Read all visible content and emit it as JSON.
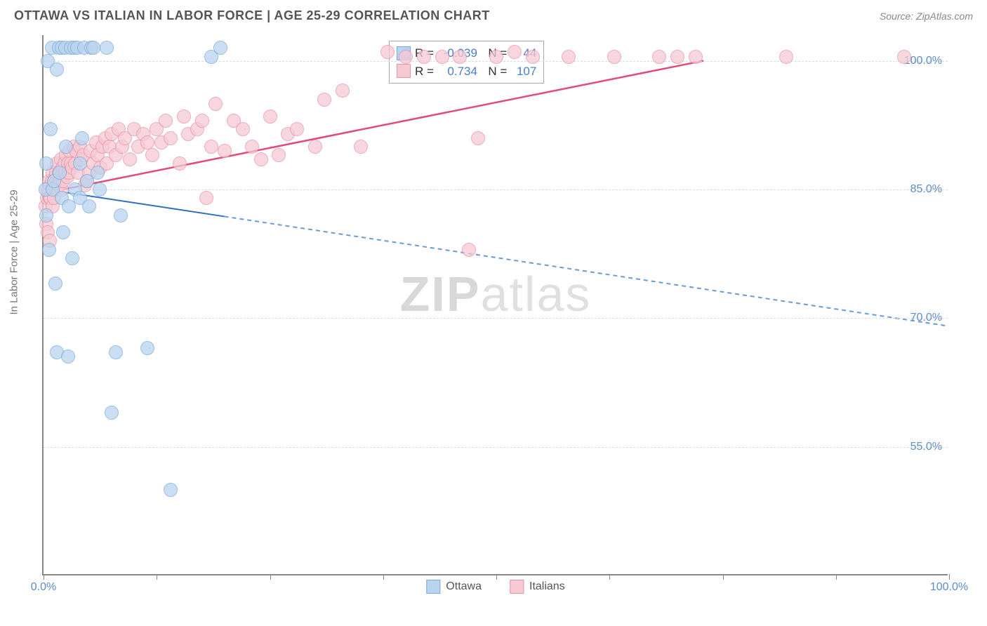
{
  "header": {
    "title": "OTTAWA VS ITALIAN IN LABOR FORCE | AGE 25-29 CORRELATION CHART",
    "source": "Source: ZipAtlas.com"
  },
  "chart": {
    "type": "scatter",
    "y_axis_label": "In Labor Force | Age 25-29",
    "xlim": [
      0,
      100
    ],
    "ylim": [
      40,
      103
    ],
    "x_ticks": [
      0,
      12.5,
      25,
      37.5,
      50,
      62.5,
      75,
      87.5,
      100
    ],
    "x_tick_labels": {
      "0": "0.0%",
      "100": "100.0%"
    },
    "y_ticks": [
      55,
      70,
      85,
      100
    ],
    "y_tick_labels": {
      "55": "55.0%",
      "70": "70.0%",
      "85": "85.0%",
      "100": "100.0%"
    },
    "grid_color": "#dddddd",
    "axis_color": "#888888",
    "background_color": "#ffffff",
    "point_radius": 10,
    "series": {
      "ottawa": {
        "label": "Ottawa",
        "fill": "#b9d4ef",
        "stroke": "#7da9d8",
        "R": "-0.039",
        "N": "44",
        "trend": {
          "x1": 0,
          "y1": 85.0,
          "x2_solid": 20,
          "y2_solid": 81.8,
          "x2_dash": 100,
          "y2_dash": 69.0,
          "color_solid": "#2f6fc1",
          "color_dash": "#6a9bd6",
          "width": 2
        },
        "points": [
          [
            0.2,
            85
          ],
          [
            0.3,
            82
          ],
          [
            0.3,
            88
          ],
          [
            0.5,
            100
          ],
          [
            0.6,
            78
          ],
          [
            0.8,
            92
          ],
          [
            0.9,
            101.5
          ],
          [
            1.0,
            85
          ],
          [
            1.2,
            86
          ],
          [
            1.3,
            74
          ],
          [
            1.5,
            66
          ],
          [
            1.5,
            99
          ],
          [
            1.7,
            101.5
          ],
          [
            1.8,
            87
          ],
          [
            2.0,
            101.5
          ],
          [
            2.0,
            84
          ],
          [
            2.2,
            80
          ],
          [
            2.4,
            101.5
          ],
          [
            2.5,
            90
          ],
          [
            2.7,
            65.5
          ],
          [
            2.8,
            83
          ],
          [
            3.0,
            101.5
          ],
          [
            3.2,
            77
          ],
          [
            3.4,
            101.5
          ],
          [
            3.5,
            85
          ],
          [
            3.7,
            101.5
          ],
          [
            4.0,
            84
          ],
          [
            4.0,
            88
          ],
          [
            4.3,
            91
          ],
          [
            4.5,
            101.5
          ],
          [
            4.8,
            86
          ],
          [
            5.0,
            83
          ],
          [
            5.3,
            101.5
          ],
          [
            5.5,
            101.5
          ],
          [
            6.0,
            87
          ],
          [
            6.2,
            85
          ],
          [
            7.0,
            101.5
          ],
          [
            7.5,
            59
          ],
          [
            8.0,
            66
          ],
          [
            8.5,
            82
          ],
          [
            11.5,
            66.5
          ],
          [
            14.0,
            50
          ],
          [
            18.5,
            100.5
          ],
          [
            19.5,
            101.5
          ]
        ]
      },
      "italians": {
        "label": "Italians",
        "fill": "#f6c9d3",
        "stroke": "#e593aa",
        "R": "0.734",
        "N": "107",
        "trend": {
          "x1": 0,
          "y1": 84.5,
          "x2_solid": 73,
          "y2_solid": 100.0,
          "x2_dash": 73,
          "y2_dash": 100.0,
          "color_solid": "#e14a7a",
          "color_dash": "#e14a7a",
          "width": 2.5
        },
        "points": [
          [
            0.2,
            83
          ],
          [
            0.3,
            81
          ],
          [
            0.4,
            84
          ],
          [
            0.5,
            80
          ],
          [
            0.5,
            85
          ],
          [
            0.6,
            86
          ],
          [
            0.7,
            79
          ],
          [
            0.7,
            84
          ],
          [
            0.8,
            85.5
          ],
          [
            0.8,
            84
          ],
          [
            0.9,
            86
          ],
          [
            1.0,
            87
          ],
          [
            1.0,
            83
          ],
          [
            1.1,
            85.5
          ],
          [
            1.2,
            84
          ],
          [
            1.3,
            86.5
          ],
          [
            1.4,
            87
          ],
          [
            1.5,
            85
          ],
          [
            1.5,
            88
          ],
          [
            1.6,
            85.5
          ],
          [
            1.7,
            87
          ],
          [
            1.8,
            86
          ],
          [
            1.9,
            88.5
          ],
          [
            2.0,
            85
          ],
          [
            2.1,
            87.5
          ],
          [
            2.2,
            86
          ],
          [
            2.3,
            88
          ],
          [
            2.4,
            87
          ],
          [
            2.5,
            89
          ],
          [
            2.6,
            86.5
          ],
          [
            2.7,
            88
          ],
          [
            2.8,
            87
          ],
          [
            2.9,
            89.5
          ],
          [
            3.0,
            88
          ],
          [
            3.2,
            87.5
          ],
          [
            3.3,
            90
          ],
          [
            3.5,
            88
          ],
          [
            3.6,
            89.5
          ],
          [
            3.8,
            87
          ],
          [
            4.0,
            90
          ],
          [
            4.2,
            88.5
          ],
          [
            4.4,
            89
          ],
          [
            4.6,
            85.5
          ],
          [
            4.8,
            86
          ],
          [
            5.0,
            87
          ],
          [
            5.2,
            89.5
          ],
          [
            5.5,
            88
          ],
          [
            5.8,
            90.5
          ],
          [
            6.0,
            89
          ],
          [
            6.3,
            87.5
          ],
          [
            6.5,
            90
          ],
          [
            6.8,
            91
          ],
          [
            7.0,
            88
          ],
          [
            7.3,
            90
          ],
          [
            7.5,
            91.5
          ],
          [
            8.0,
            89
          ],
          [
            8.3,
            92
          ],
          [
            8.7,
            90
          ],
          [
            9.0,
            91
          ],
          [
            9.5,
            88.5
          ],
          [
            10,
            92
          ],
          [
            10.5,
            90
          ],
          [
            11,
            91.5
          ],
          [
            11.5,
            90.5
          ],
          [
            12,
            89
          ],
          [
            12.5,
            92
          ],
          [
            13,
            90.5
          ],
          [
            13.5,
            93
          ],
          [
            14,
            91
          ],
          [
            15,
            88
          ],
          [
            15.5,
            93.5
          ],
          [
            16,
            91.5
          ],
          [
            17,
            92
          ],
          [
            17.5,
            93
          ],
          [
            18,
            84
          ],
          [
            18.5,
            90
          ],
          [
            19,
            95
          ],
          [
            20,
            89.5
          ],
          [
            21,
            93
          ],
          [
            22,
            92
          ],
          [
            23,
            90
          ],
          [
            24,
            88.5
          ],
          [
            25,
            93.5
          ],
          [
            26,
            89
          ],
          [
            27,
            91.5
          ],
          [
            28,
            92
          ],
          [
            30,
            90
          ],
          [
            31,
            95.5
          ],
          [
            33,
            96.5
          ],
          [
            35,
            90
          ],
          [
            38,
            101
          ],
          [
            40,
            100.5
          ],
          [
            42,
            100.5
          ],
          [
            44,
            100.5
          ],
          [
            46,
            100.5
          ],
          [
            48,
            91
          ],
          [
            50,
            100.5
          ],
          [
            52,
            101
          ],
          [
            54,
            100.5
          ],
          [
            47,
            78
          ],
          [
            58,
            100.5
          ],
          [
            63,
            100.5
          ],
          [
            68,
            100.5
          ],
          [
            70,
            100.5
          ],
          [
            72,
            100.5
          ],
          [
            82,
            100.5
          ],
          [
            95,
            100.5
          ]
        ]
      }
    },
    "watermark": {
      "bold": "ZIP",
      "rest": "atlas"
    }
  }
}
